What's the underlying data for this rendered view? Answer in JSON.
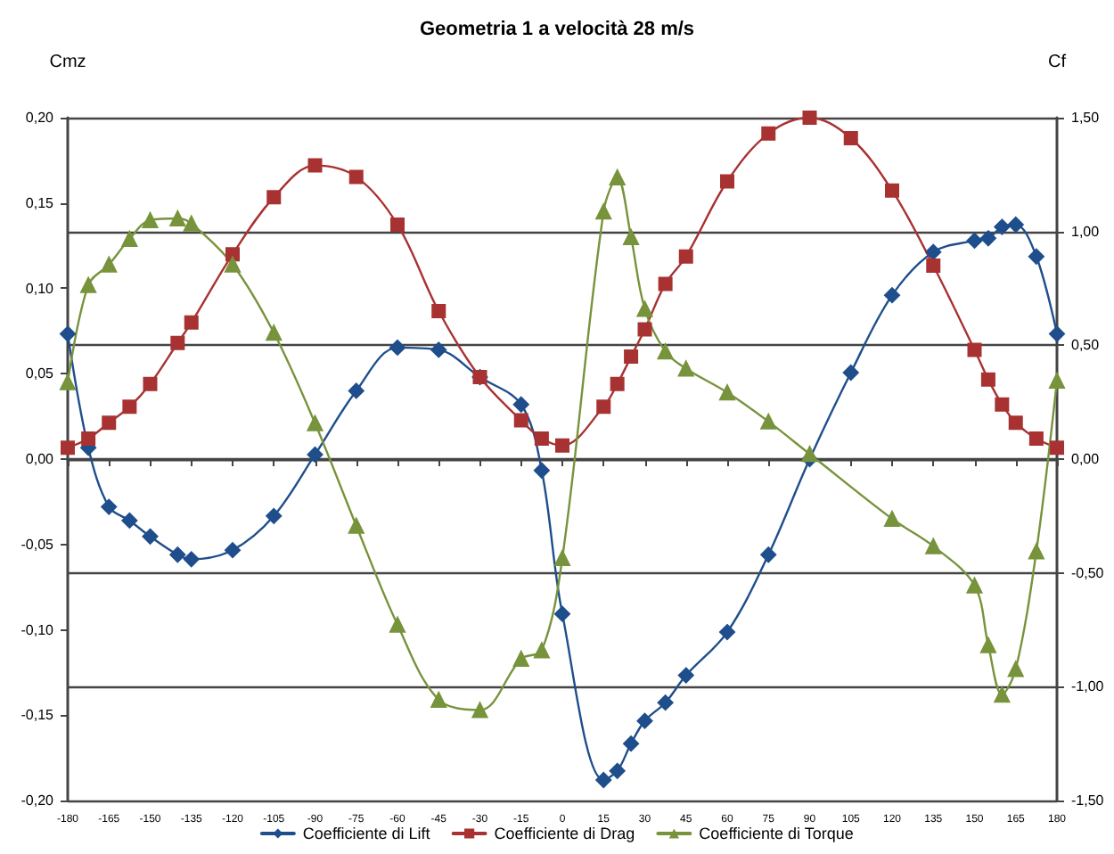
{
  "chart_data": {
    "type": "line",
    "title": "Geometria 1 a velocità 28 m/s",
    "ylabel": "Cmz",
    "y2label": "Cf",
    "xlim": [
      -180,
      180
    ],
    "xticks": [
      -180,
      -165,
      -150,
      -135,
      -120,
      -105,
      -90,
      -75,
      -60,
      -45,
      -30,
      -15,
      0,
      15,
      30,
      45,
      60,
      75,
      90,
      105,
      120,
      135,
      150,
      165,
      180
    ],
    "ylim": [
      -0.2,
      0.2
    ],
    "yticks": [
      {
        "value": -0.2,
        "label": "-0,20"
      },
      {
        "value": -0.15,
        "label": "-0,15"
      },
      {
        "value": -0.1,
        "label": "-0,10"
      },
      {
        "value": -0.05,
        "label": "-0,05"
      },
      {
        "value": 0,
        "label": "0,00"
      },
      {
        "value": 0.05,
        "label": "0,05"
      },
      {
        "value": 0.1,
        "label": "0,10"
      },
      {
        "value": 0.15,
        "label": "0,15"
      },
      {
        "value": 0.2,
        "label": "0,20"
      }
    ],
    "y2lim": [
      -1.5,
      1.5
    ],
    "y2ticks": [
      {
        "value": -1.5,
        "label": "-1,50"
      },
      {
        "value": -1,
        "label": "-1,00"
      },
      {
        "value": -0.5,
        "label": "-0,50"
      },
      {
        "value": 0,
        "label": "0,00"
      },
      {
        "value": 0.5,
        "label": "0,50"
      },
      {
        "value": 1,
        "label": "1,00"
      },
      {
        "value": 1.5,
        "label": "1,50"
      }
    ],
    "grid": "y",
    "legend": "bottom",
    "line_style": "solid",
    "series": [
      {
        "name": "Coefficiente di Lift",
        "color": "#1f4e8c",
        "marker": "diamond",
        "axis": "y2",
        "x": [
          -180,
          -172.5,
          -165,
          -157.5,
          -150,
          -140,
          -135,
          -120,
          -105,
          -90,
          -75,
          -60,
          -45,
          -30,
          -15,
          -7.5,
          0,
          15,
          20,
          25,
          30,
          37.5,
          45,
          60,
          75,
          90,
          105,
          120,
          135,
          150,
          155,
          160,
          165,
          172.5,
          180
        ],
        "values": [
          0.55,
          0.05,
          -0.21,
          -0.27,
          -0.34,
          -0.42,
          -0.44,
          -0.4,
          -0.25,
          0.02,
          0.3,
          0.49,
          0.48,
          0.36,
          0.24,
          -0.05,
          -0.68,
          -1.41,
          -1.37,
          -1.25,
          -1.15,
          -1.07,
          -0.95,
          -0.76,
          -0.42,
          0,
          0.38,
          0.72,
          0.91,
          0.96,
          0.97,
          1.02,
          1.03,
          0.89,
          0.55
        ]
      },
      {
        "name": "Coefficiente di Drag",
        "color": "#a83232",
        "marker": "square",
        "axis": "y2",
        "x": [
          -180,
          -172.5,
          -165,
          -157.5,
          -150,
          -140,
          -135,
          -120,
          -105,
          -90,
          -75,
          -60,
          -45,
          -30,
          -15,
          -7.5,
          0,
          15,
          20,
          25,
          30,
          37.5,
          45,
          60,
          75,
          90,
          105,
          120,
          135,
          150,
          155,
          160,
          165,
          172.5,
          180
        ],
        "values": [
          0.05,
          0.09,
          0.16,
          0.23,
          0.33,
          0.51,
          0.6,
          0.9,
          1.15,
          1.29,
          1.24,
          1.03,
          0.65,
          0.36,
          0.17,
          0.09,
          0.06,
          0.23,
          0.33,
          0.45,
          0.57,
          0.77,
          0.89,
          1.22,
          1.43,
          1.5,
          1.41,
          1.18,
          0.85,
          0.48,
          0.35,
          0.24,
          0.16,
          0.09,
          0.05
        ]
      },
      {
        "name": "Coefficiente di Torque",
        "color": "#77933c",
        "marker": "triangle",
        "axis": "y",
        "x": [
          -180,
          -172.5,
          -165,
          -157.5,
          -150,
          -140,
          -135,
          -120,
          -105,
          -90,
          -75,
          -60,
          -45,
          -30,
          -15,
          -7.5,
          0,
          15,
          20,
          25,
          30,
          37.5,
          45,
          60,
          75,
          90,
          120,
          135,
          150,
          155,
          160,
          165,
          172.5,
          180
        ],
        "values": [
          0.045,
          0.102,
          0.114,
          0.129,
          0.14,
          0.141,
          0.138,
          0.114,
          0.074,
          0.021,
          -0.039,
          -0.097,
          -0.141,
          -0.147,
          -0.117,
          -0.112,
          -0.058,
          0.145,
          0.165,
          0.13,
          0.088,
          0.063,
          0.053,
          0.039,
          0.022,
          0.003,
          -0.035,
          -0.051,
          -0.074,
          -0.109,
          -0.138,
          -0.123,
          -0.054,
          0.046
        ]
      }
    ]
  }
}
